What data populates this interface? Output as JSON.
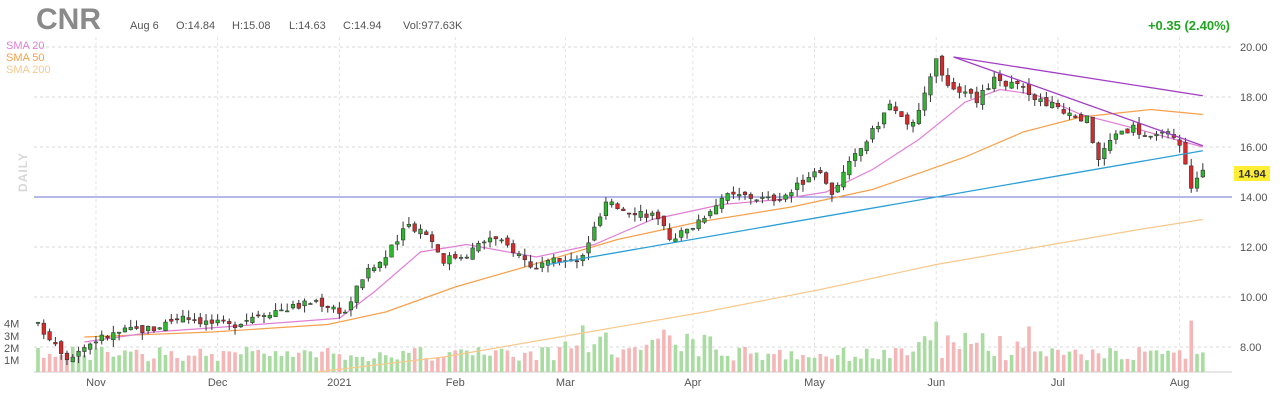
{
  "header": {
    "ticker": "CNR",
    "date": "Aug 6",
    "open": "O:14.84",
    "high": "H:15.08",
    "low": "L:14.63",
    "close": "C:14.94",
    "volume": "Vol:977.63K",
    "change": "+0.35 (2.40%)",
    "change_color": "#1fa51f"
  },
  "legend": [
    {
      "name": "SMA 20",
      "color": "#e07fd6"
    },
    {
      "name": "SMA 50",
      "color": "#f5a04c"
    },
    {
      "name": "SMA 200",
      "color": "#f7c98d"
    }
  ],
  "period_label": "DAILY",
  "last_price_label": "14.94",
  "chart_data": {
    "type": "candlestick",
    "ylim": [
      7.0,
      20.4
    ],
    "y_ticks": [
      8,
      10,
      12,
      14,
      16,
      18,
      20
    ],
    "y_tick_labels": [
      "8.00",
      "10.00",
      "12.00",
      "14.00",
      "16.00",
      "18.00",
      "20.00"
    ],
    "volume_ticks": [
      1,
      2,
      3,
      4
    ],
    "volume_tick_labels": [
      "1M",
      "2M",
      "3M",
      "4M"
    ],
    "volume_ylim": [
      0,
      5.8
    ],
    "x_range": [
      0,
      205
    ],
    "months": [
      {
        "label": "Nov",
        "index": 10
      },
      {
        "label": "Dec",
        "index": 31
      },
      {
        "label": "2021",
        "index": 52
      },
      {
        "label": "Feb",
        "index": 72
      },
      {
        "label": "Mar",
        "index": 91
      },
      {
        "label": "Apr",
        "index": 113
      },
      {
        "label": "May",
        "index": 134
      },
      {
        "label": "Jun",
        "index": 155
      },
      {
        "label": "Jul",
        "index": 176
      },
      {
        "label": "Aug",
        "index": 197
      }
    ],
    "anchors": [
      [
        0,
        8.85
      ],
      [
        3,
        8.2
      ],
      [
        5,
        7.6
      ],
      [
        10,
        8.3
      ],
      [
        15,
        8.65
      ],
      [
        20,
        8.75
      ],
      [
        25,
        9.3
      ],
      [
        29,
        9.0
      ],
      [
        33,
        8.85
      ],
      [
        38,
        9.35
      ],
      [
        44,
        9.6
      ],
      [
        48,
        9.85
      ],
      [
        53,
        9.4
      ],
      [
        56,
        10.8
      ],
      [
        60,
        11.6
      ],
      [
        64,
        12.9
      ],
      [
        67,
        12.6
      ],
      [
        70,
        11.5
      ],
      [
        74,
        11.75
      ],
      [
        78,
        12.4
      ],
      [
        82,
        11.9
      ],
      [
        86,
        11.1
      ],
      [
        90,
        11.5
      ],
      [
        93,
        11.35
      ],
      [
        96,
        12.7
      ],
      [
        98,
        13.7
      ],
      [
        102,
        13.5
      ],
      [
        106,
        13.3
      ],
      [
        109,
        12.4
      ],
      [
        112,
        12.65
      ],
      [
        115,
        13.3
      ],
      [
        118,
        14.0
      ],
      [
        122,
        14.05
      ],
      [
        126,
        13.9
      ],
      [
        130,
        14.2
      ],
      [
        134,
        15.1
      ],
      [
        137,
        14.2
      ],
      [
        140,
        15.3
      ],
      [
        144,
        16.6
      ],
      [
        147,
        17.7
      ],
      [
        150,
        16.8
      ],
      [
        152,
        17.4
      ],
      [
        155,
        19.4
      ],
      [
        158,
        18.2
      ],
      [
        162,
        17.9
      ],
      [
        165,
        18.8
      ],
      [
        168,
        18.5
      ],
      [
        172,
        18.0
      ],
      [
        175,
        17.7
      ],
      [
        178,
        17.2
      ],
      [
        181,
        17.1
      ],
      [
        183,
        15.5
      ],
      [
        186,
        16.6
      ],
      [
        189,
        16.8
      ],
      [
        192,
        16.3
      ],
      [
        195,
        16.5
      ],
      [
        197,
        16.0
      ],
      [
        199,
        14.5
      ],
      [
        201,
        14.94
      ]
    ],
    "sma20_path": [
      [
        8,
        8.2
      ],
      [
        20,
        8.6
      ],
      [
        35,
        8.85
      ],
      [
        52,
        9.15
      ],
      [
        58,
        10.2
      ],
      [
        66,
        11.8
      ],
      [
        74,
        12.1
      ],
      [
        86,
        11.6
      ],
      [
        96,
        12.1
      ],
      [
        106,
        13.1
      ],
      [
        118,
        13.7
      ],
      [
        128,
        13.9
      ],
      [
        136,
        14.2
      ],
      [
        144,
        15.1
      ],
      [
        152,
        16.3
      ],
      [
        160,
        17.8
      ],
      [
        166,
        18.3
      ],
      [
        172,
        18.1
      ],
      [
        180,
        17.3
      ],
      [
        190,
        16.7
      ],
      [
        201,
        16.0
      ]
    ],
    "sma50_path": [
      [
        8,
        8.4
      ],
      [
        30,
        8.6
      ],
      [
        50,
        8.9
      ],
      [
        60,
        9.4
      ],
      [
        72,
        10.4
      ],
      [
        84,
        11.2
      ],
      [
        100,
        12.3
      ],
      [
        114,
        13.0
      ],
      [
        130,
        13.6
      ],
      [
        144,
        14.3
      ],
      [
        160,
        15.6
      ],
      [
        170,
        16.6
      ],
      [
        180,
        17.2
      ],
      [
        192,
        17.5
      ],
      [
        201,
        17.3
      ]
    ],
    "sma200_path": [
      [
        48,
        7.0
      ],
      [
        70,
        7.6
      ],
      [
        95,
        8.6
      ],
      [
        115,
        9.4
      ],
      [
        135,
        10.3
      ],
      [
        155,
        11.3
      ],
      [
        175,
        12.1
      ],
      [
        190,
        12.7
      ],
      [
        201,
        13.1
      ]
    ],
    "hline_price": 14.0,
    "support_line": [
      [
        88,
        11.3
      ],
      [
        201,
        15.85
      ]
    ],
    "resistance_line": [
      [
        158,
        19.6
      ],
      [
        201,
        18.05
      ]
    ],
    "resistance_line2": [
      [
        158,
        19.6
      ],
      [
        201,
        16.05
      ]
    ]
  }
}
